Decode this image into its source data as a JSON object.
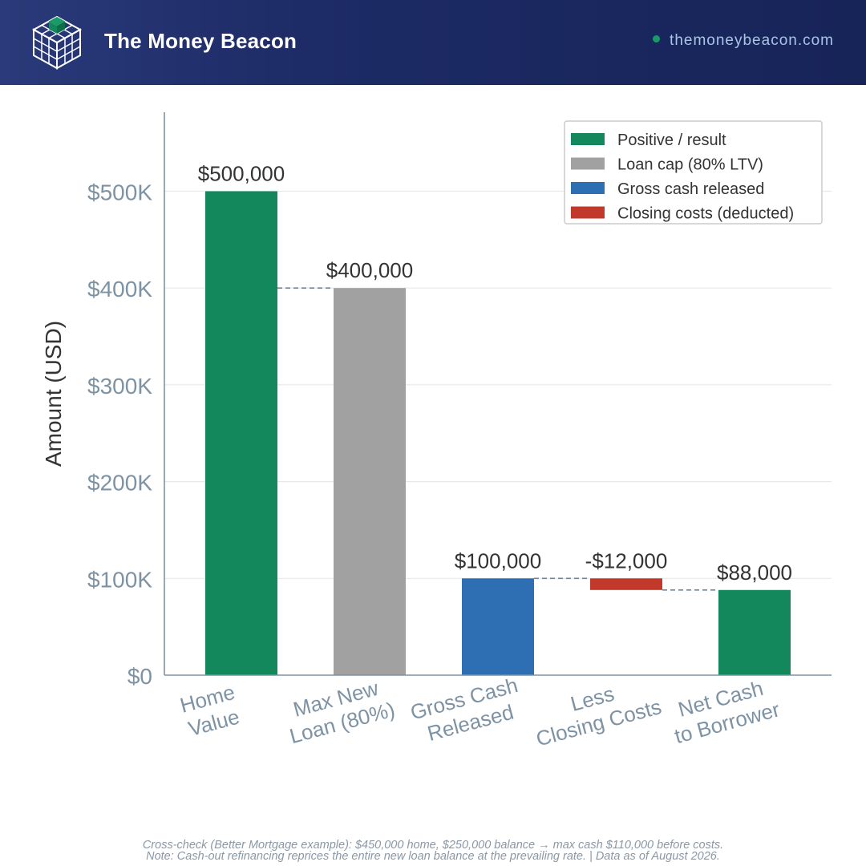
{
  "header": {
    "brand": "The Money Beacon",
    "site": "themoneybeacon.com",
    "logo_icon": "cube-grid-icon"
  },
  "colors": {
    "header_bg": "#1d2b66",
    "positive": "#12885c",
    "loan_cap": "#a1a1a1",
    "gross_cash": "#2e6fb4",
    "closing_costs": "#c0392b",
    "axis_text": "#7d93a4",
    "connector": "#6f8699"
  },
  "chart_data": {
    "type": "waterfall",
    "ylabel": "Amount (USD)",
    "ylim": [
      0,
      580000
    ],
    "yticks": [
      0,
      100000,
      200000,
      300000,
      400000,
      500000
    ],
    "ytick_labels": [
      "$0",
      "$100K",
      "$200K",
      "$300K",
      "$400K",
      "$500K"
    ],
    "grid": true,
    "legend_position": "top-right",
    "legend": [
      {
        "label": "Positive / result",
        "color": "#12885c"
      },
      {
        "label": "Loan cap (80% LTV)",
        "color": "#a1a1a1"
      },
      {
        "label": "Gross cash released",
        "color": "#2e6fb4"
      },
      {
        "label": "Closing costs (deducted)",
        "color": "#c0392b"
      }
    ],
    "bars": [
      {
        "category": [
          "Home",
          "Value"
        ],
        "base": 0,
        "top": 500000,
        "value": 500000,
        "label": "$500,000",
        "color": "#12885c"
      },
      {
        "category": [
          "Max New",
          "Loan (80%)"
        ],
        "base": 0,
        "top": 400000,
        "value": 400000,
        "label": "$400,000",
        "color": "#a1a1a1"
      },
      {
        "category": [
          "Gross Cash",
          "Released"
        ],
        "base": 0,
        "top": 100000,
        "value": 100000,
        "label": "$100,000",
        "color": "#2e6fb4"
      },
      {
        "category": [
          "Less",
          "Closing Costs"
        ],
        "base": 88000,
        "top": 100000,
        "value": -12000,
        "label": "-$12,000",
        "color": "#c0392b"
      },
      {
        "category": [
          "Net Cash",
          "to Borrower"
        ],
        "base": 0,
        "top": 88000,
        "value": 88000,
        "label": "$88,000",
        "color": "#12885c"
      }
    ],
    "connectors": [
      {
        "from": 0,
        "to": 1,
        "value": 400000
      },
      {
        "from": 2,
        "to": 3,
        "value": 100000
      },
      {
        "from": 3,
        "to": 4,
        "value": 88000
      }
    ]
  },
  "footer": {
    "line1": "Cross-check (Better Mortgage example): $450,000 home, $250,000 balance → max cash $110,000 before costs.",
    "line2": "Note: Cash-out refinancing reprices the entire new loan balance at the prevailing rate.  |  Data as of August 2026."
  }
}
